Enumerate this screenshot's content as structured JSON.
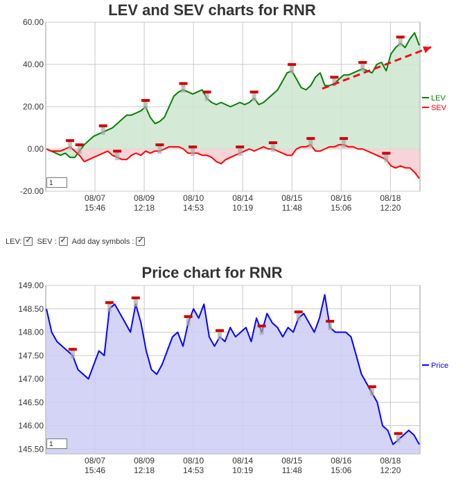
{
  "charts": {
    "lev": {
      "title": "LEV and SEV charts for RNR",
      "legend": [
        {
          "label": "LEV",
          "color": "#008000"
        },
        {
          "label": "SEV",
          "color": "#ff0000"
        }
      ],
      "pager_value": "1"
    },
    "price": {
      "title": "Price chart for RNR",
      "legend": [
        {
          "label": "Price",
          "color": "#0000ff"
        }
      ],
      "pager_value": "1"
    }
  },
  "controls": {
    "lev_label": "LEV:",
    "sev_label": "SEV :",
    "day_symbols_label": "Add day symbols :"
  },
  "chart_data": [
    {
      "type": "area",
      "title": "LEV and SEV charts for RNR",
      "y_ticks": [
        "60.00",
        "40.00",
        "20.00",
        "0.00",
        "-20.00"
      ],
      "ylim": [
        -20,
        60
      ],
      "x_ticks": [
        {
          "date": "08/07",
          "time": "15:46"
        },
        {
          "date": "08/09",
          "time": "12:18"
        },
        {
          "date": "08/10",
          "time": "14:53"
        },
        {
          "date": "08/14",
          "time": "10:19"
        },
        {
          "date": "08/15",
          "time": "11:48"
        },
        {
          "date": "08/16",
          "time": "15:06"
        },
        {
          "date": "08/18",
          "time": "12:20"
        }
      ],
      "grid": true,
      "legend_position": "right",
      "annotation": "dashed red trend arrow pointing up-right",
      "series": [
        {
          "name": "LEV",
          "color": "#008000",
          "fill": "#cde5cf",
          "values": [
            0,
            -1,
            -2,
            -3,
            -2,
            -4,
            -4,
            -1,
            2,
            4,
            6,
            7,
            8,
            9,
            10,
            12,
            14,
            16,
            16,
            17,
            18,
            20,
            15,
            12,
            13,
            15,
            20,
            25,
            27,
            28,
            27,
            26,
            27,
            28,
            24,
            22,
            21,
            22,
            21,
            20,
            21,
            22,
            21,
            22,
            24,
            21,
            22,
            24,
            26,
            28,
            32,
            36,
            37,
            33,
            29,
            28,
            30,
            34,
            36,
            30,
            30,
            31,
            33,
            35,
            35,
            36,
            37,
            38,
            37,
            36,
            40,
            41,
            37,
            45,
            48,
            50,
            48,
            52,
            55,
            49
          ]
        },
        {
          "name": "SEV",
          "color": "#ff0000",
          "fill": "#f6ccd0",
          "values": [
            0,
            -1,
            -1,
            -1,
            0,
            1,
            -1,
            -3,
            -6,
            -5,
            -4,
            -3,
            -2,
            -1,
            -3,
            -4,
            -5,
            -5,
            -3,
            -2,
            -3,
            -1,
            -2,
            -1,
            -1,
            0,
            1,
            1,
            1,
            0,
            -2,
            -2,
            -2,
            -3,
            -3,
            -4,
            -6,
            -7,
            -5,
            -4,
            -3,
            -2,
            -1,
            0,
            -1,
            0,
            1,
            0,
            0,
            -1,
            -2,
            -3,
            -3,
            0,
            1,
            1,
            2,
            -1,
            -1,
            0,
            1,
            1,
            2,
            2,
            1,
            1,
            0,
            0,
            -1,
            -2,
            -3,
            -4,
            -5,
            -8,
            -9,
            -8,
            -9,
            -9,
            -11,
            -14
          ]
        }
      ]
    },
    {
      "type": "area",
      "title": "Price chart for RNR",
      "y_ticks": [
        "149.00",
        "148.50",
        "148.00",
        "147.50",
        "147.00",
        "146.50",
        "146.00",
        "145.50"
      ],
      "ylim": [
        145.4,
        149.0
      ],
      "x_ticks": [
        {
          "date": "08/07",
          "time": "15:46"
        },
        {
          "date": "08/09",
          "time": "12:18"
        },
        {
          "date": "08/10",
          "time": "14:53"
        },
        {
          "date": "08/14",
          "time": "10:19"
        },
        {
          "date": "08/15",
          "time": "11:48"
        },
        {
          "date": "08/16",
          "time": "15:06"
        },
        {
          "date": "08/18",
          "time": "12:20"
        }
      ],
      "grid": true,
      "legend_position": "right",
      "series": [
        {
          "name": "Price",
          "color": "#0000ff",
          "fill": "#ccccf5",
          "values": [
            148.5,
            148.0,
            147.8,
            147.7,
            147.6,
            147.5,
            147.2,
            147.1,
            147.0,
            147.3,
            147.6,
            147.5,
            148.5,
            148.6,
            148.4,
            148.2,
            148.0,
            148.6,
            148.2,
            147.6,
            147.2,
            147.1,
            147.3,
            147.6,
            147.9,
            148.0,
            147.7,
            148.2,
            148.5,
            148.3,
            148.6,
            147.9,
            147.7,
            147.9,
            147.8,
            148.1,
            147.9,
            148.0,
            148.1,
            147.8,
            148.3,
            148.0,
            148.4,
            148.2,
            148.1,
            147.9,
            148.1,
            148.0,
            148.3,
            148.4,
            148.2,
            148.0,
            148.3,
            148.8,
            148.1,
            148.0,
            148.0,
            148.0,
            147.9,
            147.5,
            147.1,
            146.9,
            146.7,
            146.5,
            146.0,
            145.9,
            145.6,
            145.7,
            145.8,
            145.9,
            145.8,
            145.6
          ]
        }
      ]
    }
  ]
}
